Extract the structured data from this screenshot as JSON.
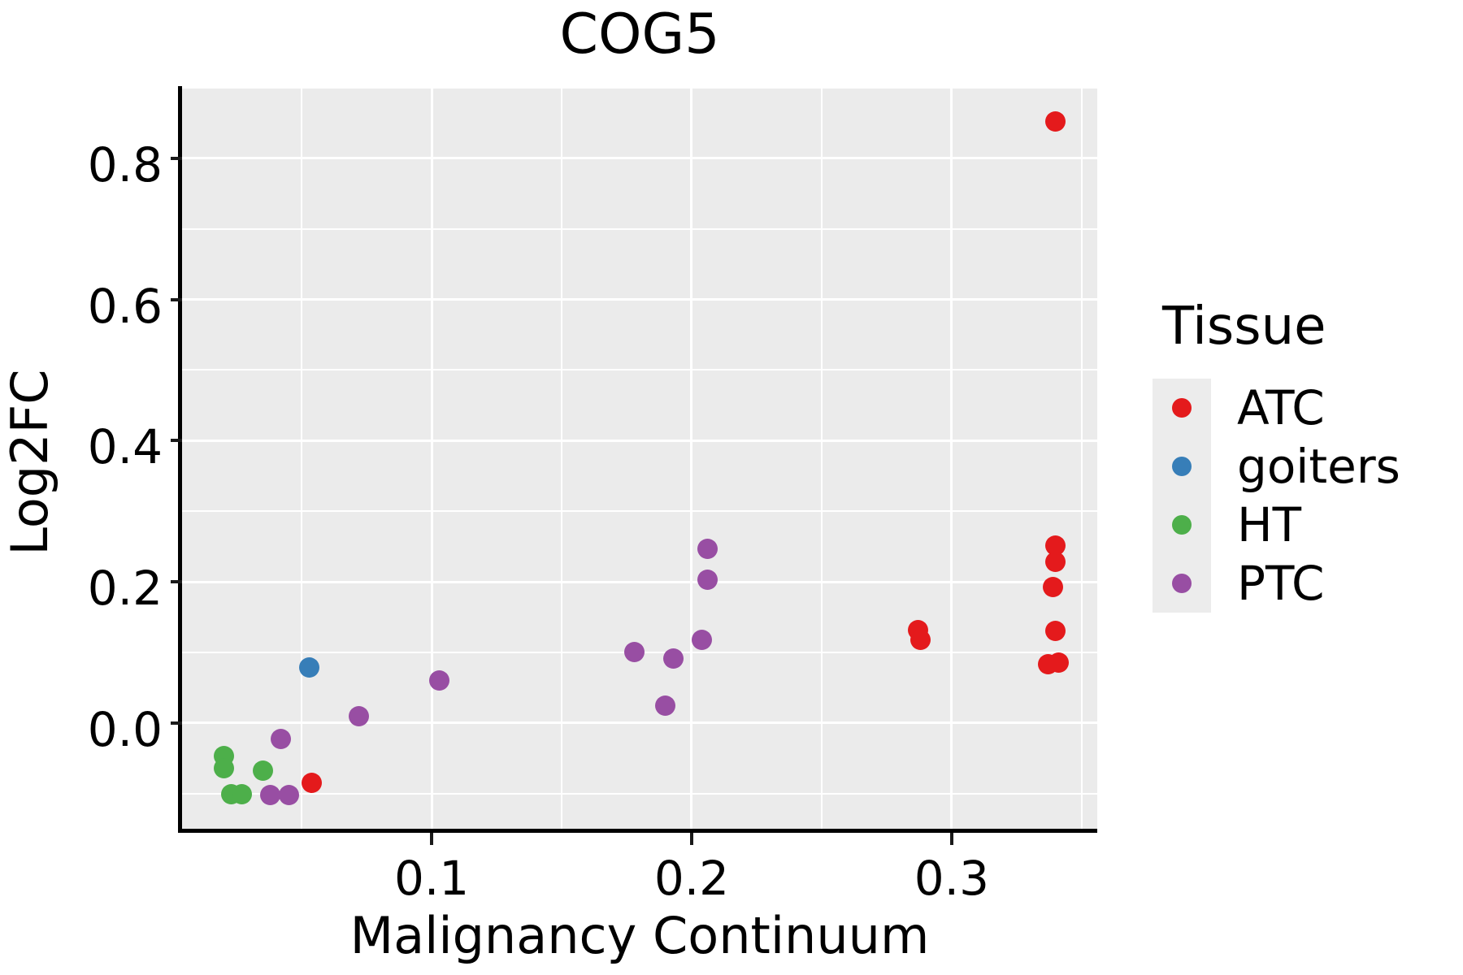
{
  "chart_data": {
    "type": "scatter",
    "title": "COG5",
    "xlabel": "Malignancy Continuum",
    "ylabel": "Log2FC",
    "xlim": [
      0.004,
      0.356
    ],
    "ylim": [
      -0.15,
      0.9
    ],
    "x_major_ticks": [
      0.1,
      0.2,
      0.3
    ],
    "x_tick_labels": [
      "0.1",
      "0.2",
      "0.3"
    ],
    "x_minor_ticks": [
      0.05,
      0.15,
      0.25,
      0.35
    ],
    "y_major_ticks": [
      0.0,
      0.2,
      0.4,
      0.6,
      0.8
    ],
    "y_tick_labels": [
      "0.0",
      "0.2",
      "0.4",
      "0.6",
      "0.8"
    ],
    "y_minor_ticks": [
      -0.1,
      0.1,
      0.3,
      0.5,
      0.7,
      0.9
    ],
    "grid": true,
    "panel_bg": "#EBEBEB",
    "grid_color": "#FFFFFF",
    "legend": {
      "title": "Tissue",
      "position": "right",
      "items": [
        {
          "label": "ATC",
          "color": "#E41A1C"
        },
        {
          "label": "goiters",
          "color": "#377EB8"
        },
        {
          "label": "HT",
          "color": "#4DAF4A"
        },
        {
          "label": "PTC",
          "color": "#984EA3"
        }
      ]
    },
    "series": [
      {
        "name": "ATC",
        "color": "#E41A1C",
        "points": [
          [
            0.054,
            -0.085
          ],
          [
            0.287,
            0.131
          ],
          [
            0.288,
            0.118
          ],
          [
            0.34,
            0.852
          ],
          [
            0.34,
            0.251
          ],
          [
            0.34,
            0.228
          ],
          [
            0.339,
            0.192
          ],
          [
            0.34,
            0.13
          ],
          [
            0.337,
            0.083
          ],
          [
            0.341,
            0.086
          ]
        ]
      },
      {
        "name": "goiters",
        "color": "#377EB8",
        "points": [
          [
            0.053,
            0.078
          ]
        ]
      },
      {
        "name": "HT",
        "color": "#4DAF4A",
        "points": [
          [
            0.02,
            -0.047
          ],
          [
            0.02,
            -0.064
          ],
          [
            0.035,
            -0.068
          ],
          [
            0.023,
            -0.101
          ],
          [
            0.027,
            -0.101
          ]
        ]
      },
      {
        "name": "PTC",
        "color": "#984EA3",
        "points": [
          [
            0.042,
            -0.023
          ],
          [
            0.038,
            -0.102
          ],
          [
            0.045,
            -0.102
          ],
          [
            0.072,
            0.009
          ],
          [
            0.103,
            0.06
          ],
          [
            0.178,
            0.1
          ],
          [
            0.193,
            0.091
          ],
          [
            0.19,
            0.024
          ],
          [
            0.204,
            0.118
          ],
          [
            0.206,
            0.203
          ],
          [
            0.206,
            0.247
          ]
        ]
      }
    ]
  }
}
